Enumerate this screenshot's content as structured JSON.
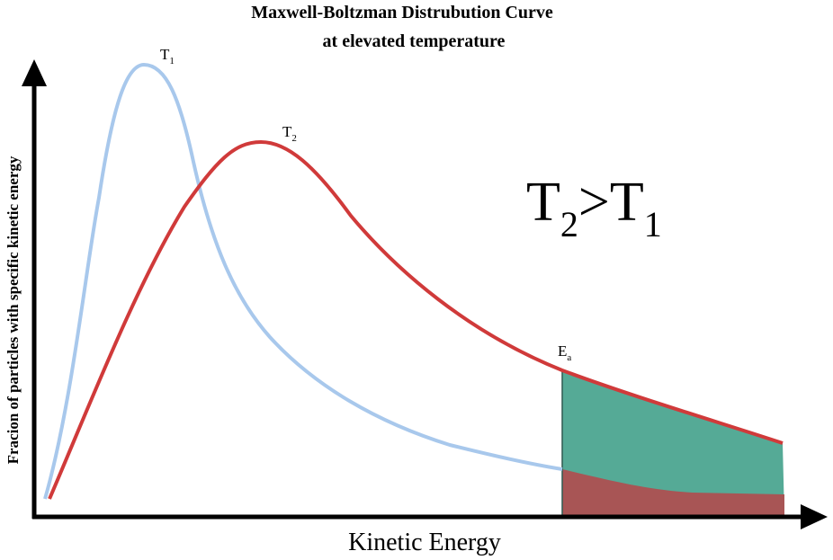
{
  "title": {
    "line1": "Maxwell-Boltzman Distrubution Curve",
    "line2": "at elevated temperature"
  },
  "curve_labels": {
    "t1": {
      "base": "T",
      "sub": "1"
    },
    "t2": {
      "base": "T",
      "sub": "2"
    },
    "ea": {
      "base": "E",
      "sub": "a"
    }
  },
  "comparison": [
    {
      "base": "T",
      "sub": "2"
    },
    ">",
    {
      "base": "T",
      "sub": "1"
    }
  ],
  "axes": {
    "y_label": "Fracion of particles with specific kinetic energy",
    "x_label": "Kinetic Energy"
  }
}
